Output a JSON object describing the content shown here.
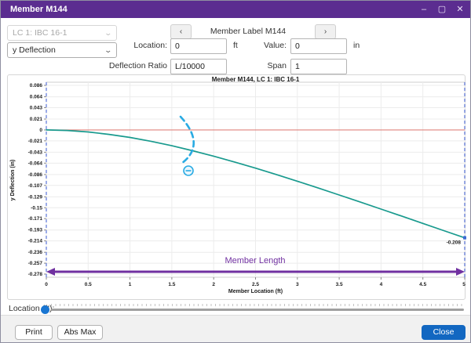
{
  "window": {
    "title": "Member M144",
    "minimize": "–",
    "maximize": "▢",
    "close": "✕"
  },
  "header": {
    "lc_dropdown": {
      "value": "LC 1: IBC 16-1",
      "disabled": true,
      "chevron": "⌄"
    },
    "plot_type_dropdown": {
      "value": "y Deflection",
      "chevron": "⌄"
    },
    "prev": "‹",
    "next": "›",
    "member_label": "Member Label M144",
    "location": {
      "label": "Location:",
      "value": "0",
      "unit": "ft"
    },
    "value": {
      "label": "Value:",
      "value": "0",
      "unit": "in"
    },
    "deflection_ratio": {
      "label": "Deflection Ratio",
      "value": "L/10000"
    },
    "span": {
      "label": "Span",
      "value": "1"
    }
  },
  "chart_data": {
    "type": "line",
    "title": "Member M144, LC 1: IBC 16-1",
    "xlabel": "Member Location (ft)",
    "ylabel": "y Deflection (in)",
    "xlim": [
      0,
      5
    ],
    "ylim": [
      -0.278,
      0.086
    ],
    "grid": true,
    "legend": "none",
    "x_ticks": [
      "0",
      "0.5",
      "1",
      "1.5",
      "2",
      "2.5",
      "3",
      "3.5",
      "4",
      "4.5",
      "5"
    ],
    "y_ticks": [
      "0.086",
      "0.064",
      "0.043",
      "0.021",
      "0",
      "-0.021",
      "-0.043",
      "-0.064",
      "-0.086",
      "-0.107",
      "-0.129",
      "-0.15",
      "-0.171",
      "-0.193",
      "-0.214",
      "-0.236",
      "-0.257",
      "-0.278"
    ],
    "series": [
      {
        "name": "y Deflection",
        "color": "#199a8e",
        "x": [
          0,
          0.25,
          0.5,
          0.75,
          1,
          1.25,
          1.5,
          1.75,
          2,
          2.25,
          2.5,
          2.75,
          3,
          3.25,
          3.5,
          3.75,
          4,
          4.25,
          4.5,
          4.75,
          5
        ],
        "y": [
          0,
          -0.001,
          -0.0039,
          -0.0085,
          -0.0145,
          -0.0219,
          -0.0305,
          -0.0401,
          -0.0506,
          -0.0618,
          -0.0737,
          -0.086,
          -0.0988,
          -0.112,
          -0.1254,
          -0.1389,
          -0.1526,
          -0.1664,
          -0.1803,
          -0.1941,
          -0.208
        ]
      }
    ],
    "zero_line": {
      "y": 0,
      "color": "#e0837c"
    },
    "cursor_lines": {
      "positions": [
        0,
        5
      ],
      "color": "#5b74d8"
    },
    "end_point": {
      "x": 5,
      "y": -0.208,
      "label": "-0.208",
      "marker_color": "#3b6cd4"
    },
    "member_length": {
      "label": "Member Length",
      "color": "#7030a0"
    },
    "gesture_annotation": {
      "icon": "minus-circle",
      "color": "#2aabe3"
    }
  },
  "slider": {
    "label": "Location (ft):",
    "value": 0,
    "min": 0,
    "max": 5
  },
  "footer": {
    "print": "Print",
    "abs_max": "Abs Max",
    "close": "Close"
  }
}
